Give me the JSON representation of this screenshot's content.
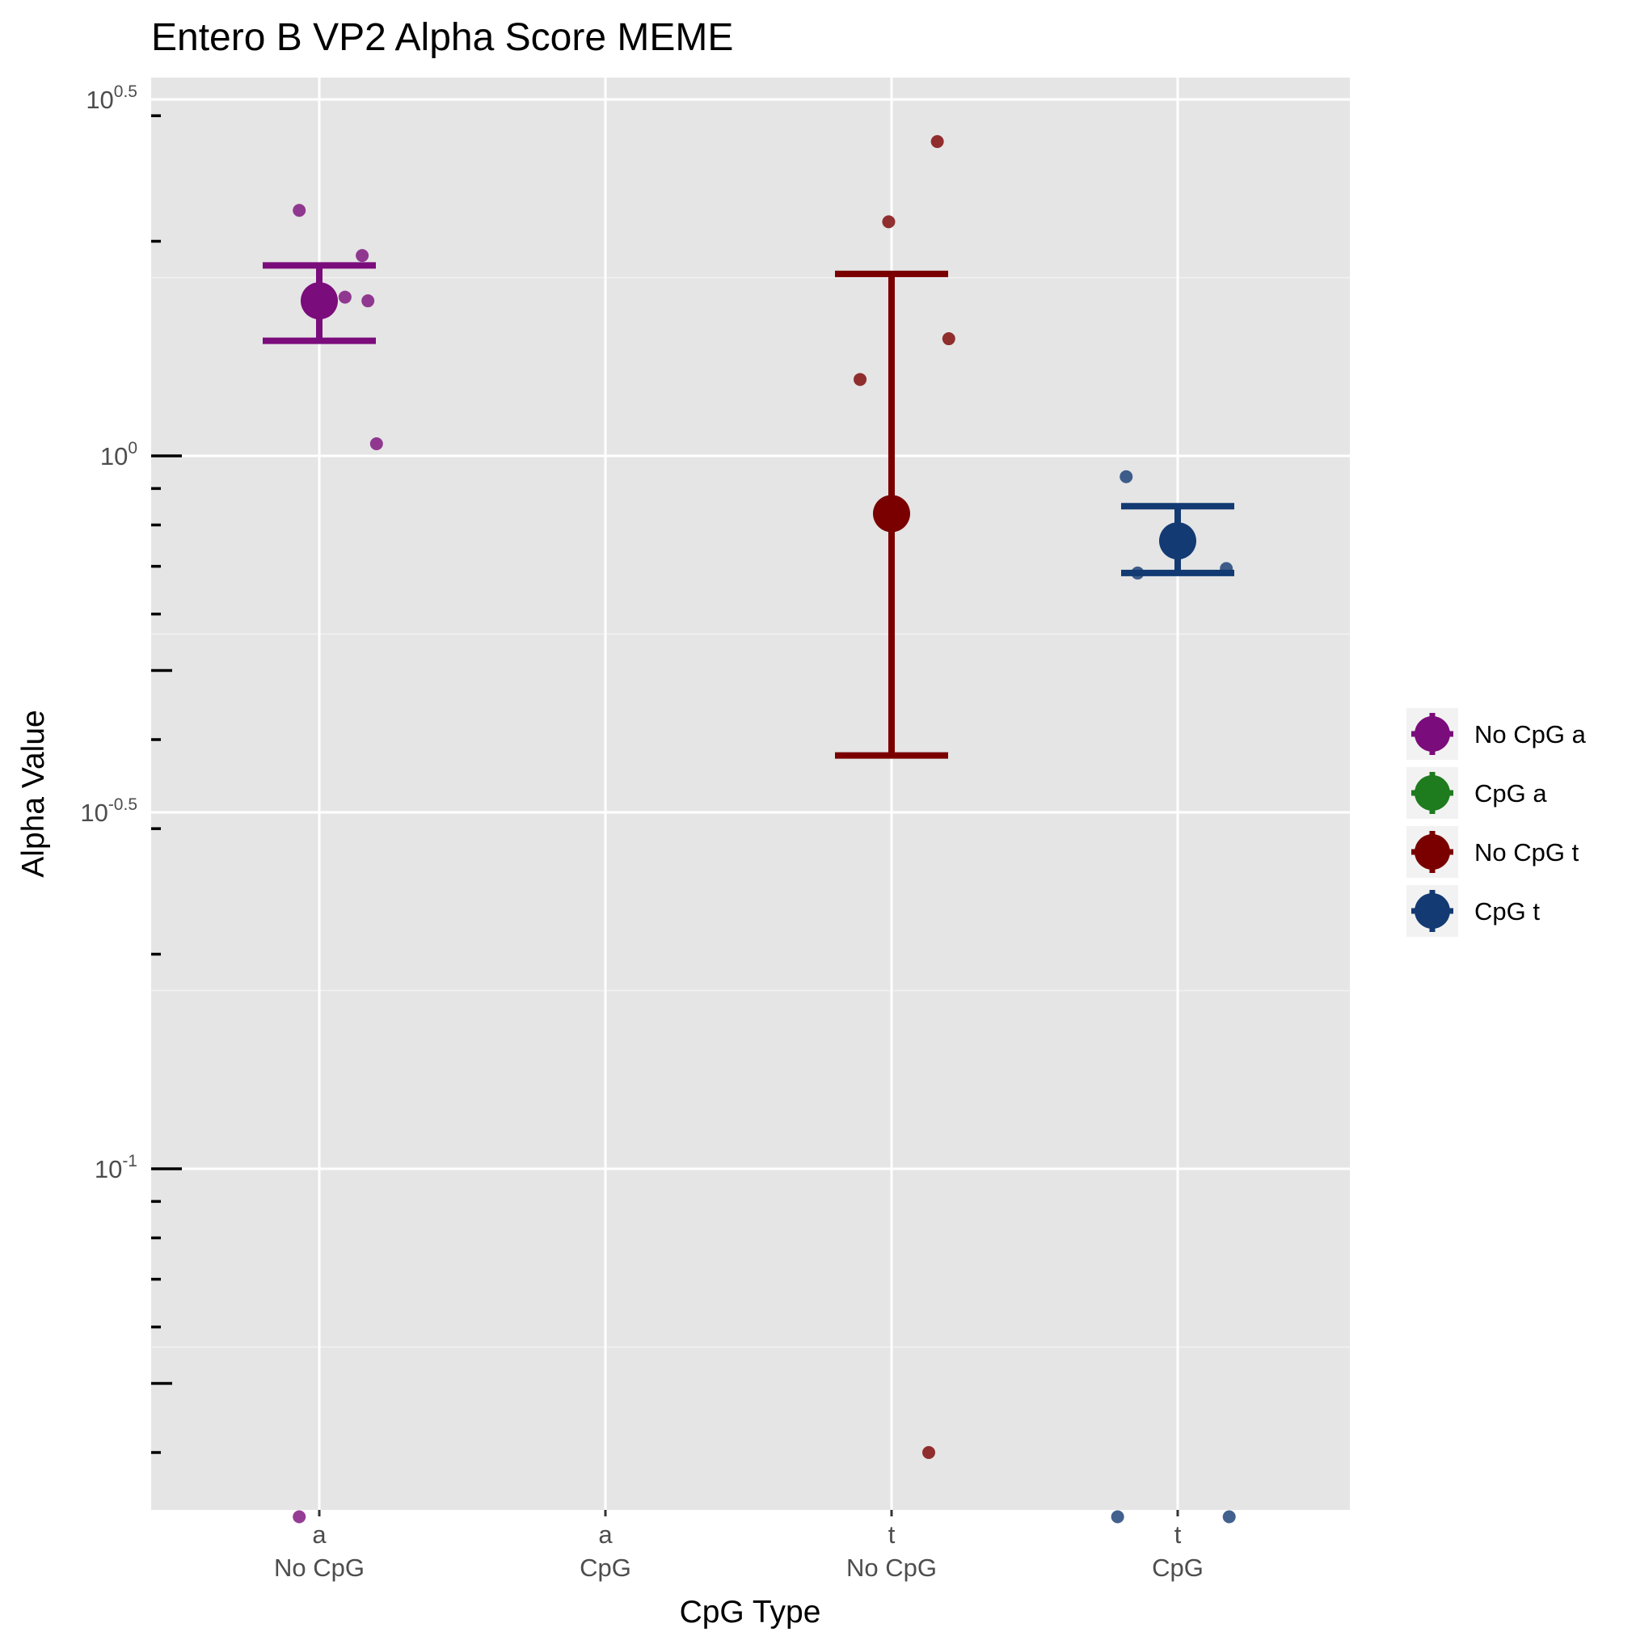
{
  "chart_data": {
    "type": "scatter",
    "title": "Entero B VP2 Alpha Score MEME",
    "xlabel": "CpG Type",
    "ylabel": "Alpha Value",
    "y_scale": "log10",
    "ylim": [
      0.0325,
      3.6
    ],
    "grid": true,
    "legend_position": "right",
    "categories": [
      {
        "line1": "a",
        "line2": "No CpG"
      },
      {
        "line1": "a",
        "line2": "CpG"
      },
      {
        "line1": "t",
        "line2": "No CpG"
      },
      {
        "line1": "t",
        "line2": "CpG"
      }
    ],
    "y_major_ticks": [
      {
        "value": 0.1,
        "base": "10",
        "exp": "-1"
      },
      {
        "value": 0.316228,
        "base": "10",
        "exp": "-0.5"
      },
      {
        "value": 1,
        "base": "10",
        "exp": "0"
      },
      {
        "value": 3.162278,
        "base": "10",
        "exp": "0.5"
      }
    ],
    "series": [
      {
        "name": "No CpG a",
        "category": 0,
        "color": "#7b0c7b",
        "mean": 1.65,
        "error_low": 1.45,
        "error_high": 1.85,
        "points": [
          {
            "x": 0.93,
            "y": 2.21
          },
          {
            "x": 1.15,
            "y": 1.91
          },
          {
            "x": 1.09,
            "y": 1.67
          },
          {
            "x": 1.17,
            "y": 1.65
          },
          {
            "x": 1.2,
            "y": 1.04
          },
          {
            "x": 0.93,
            "y": 0.0325
          }
        ]
      },
      {
        "name": "CpG a",
        "category": 1,
        "color": "#1e7b1e",
        "points": []
      },
      {
        "name": "No CpG t",
        "category": 2,
        "color": "#7a0000",
        "mean": 0.83,
        "error_low": 0.38,
        "error_high": 1.8,
        "points": [
          {
            "x": 3.16,
            "y": 2.76
          },
          {
            "x": 2.99,
            "y": 2.13
          },
          {
            "x": 3.2,
            "y": 1.46
          },
          {
            "x": 2.89,
            "y": 1.28
          },
          {
            "x": 3.13,
            "y": 0.04
          }
        ]
      },
      {
        "name": "CpG t",
        "category": 3,
        "color": "#133a72",
        "mean": 0.76,
        "error_low": 0.685,
        "error_high": 0.85,
        "points": [
          {
            "x": 3.82,
            "y": 0.935
          },
          {
            "x": 3.86,
            "y": 0.685
          },
          {
            "x": 4.17,
            "y": 0.695
          },
          {
            "x": 3.79,
            "y": 0.0325
          },
          {
            "x": 4.18,
            "y": 0.0325
          }
        ]
      }
    ]
  }
}
